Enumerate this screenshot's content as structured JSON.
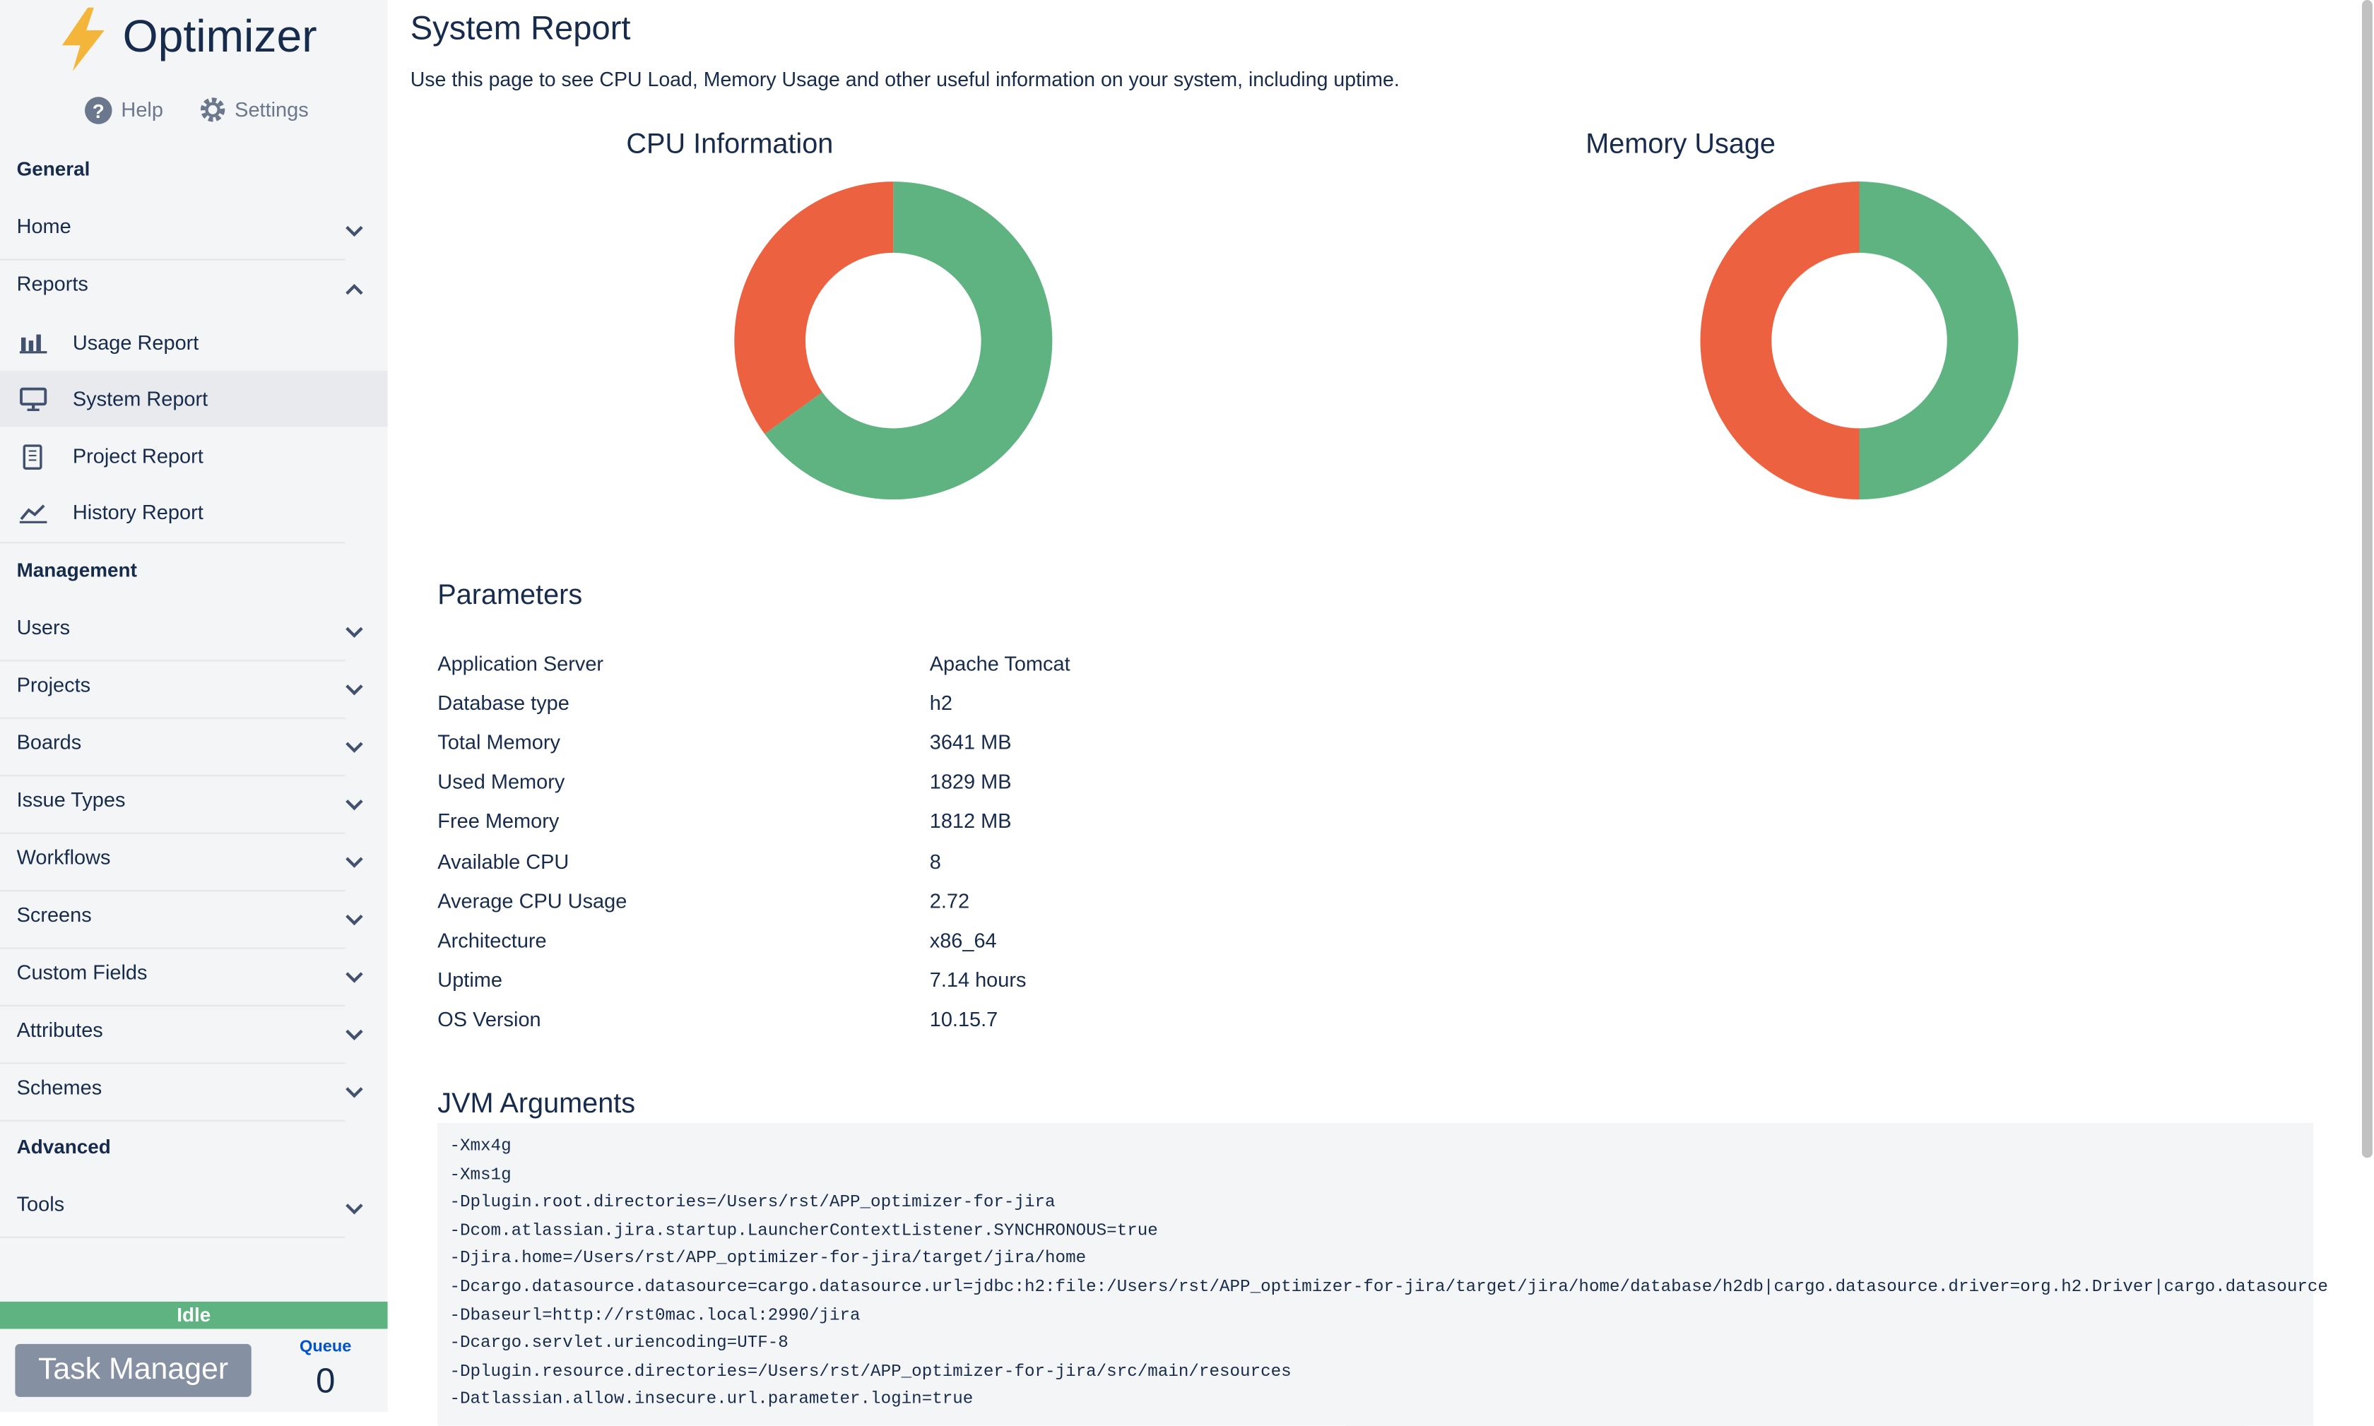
{
  "app": {
    "name": "Optimizer",
    "links": [
      "Help",
      "Settings"
    ]
  },
  "sidebar": {
    "sections": [
      {
        "title": "General",
        "items": [
          {
            "label": "Home"
          },
          {
            "label": "Reports",
            "children": [
              "Usage Report",
              "System Report",
              "Project Report",
              "History Report"
            ]
          }
        ]
      },
      {
        "title": "Management",
        "items": [
          {
            "label": "Users"
          },
          {
            "label": "Projects"
          },
          {
            "label": "Boards"
          },
          {
            "label": "Issue Types"
          },
          {
            "label": "Workflows"
          },
          {
            "label": "Screens"
          },
          {
            "label": "Custom Fields"
          },
          {
            "label": "Attributes"
          },
          {
            "label": "Schemes"
          }
        ]
      },
      {
        "title": "Advanced",
        "items": [
          {
            "label": "Tools"
          }
        ]
      }
    ]
  },
  "status": "Idle",
  "task_manager": "Task Manager",
  "queue": {
    "label": "Queue",
    "value": 0
  },
  "page": {
    "title": "System Report",
    "description": "Use this page to see CPU Load, Memory Usage and other useful information on your system, including uptime."
  },
  "charts": [
    {
      "type": "pie",
      "title": "CPU Information",
      "values": [
        65,
        35
      ],
      "colors": [
        "#5eb381",
        "#ec6240"
      ]
    },
    {
      "type": "pie",
      "title": "Memory Usage",
      "values": [
        50,
        50
      ],
      "colors": [
        "#5eb381",
        "#ec6240"
      ]
    }
  ],
  "parameters": {
    "title": "Parameters",
    "rows": [
      [
        "Application Server",
        "Apache Tomcat"
      ],
      [
        "Database type",
        "h2"
      ],
      [
        "Total Memory",
        "3641 MB"
      ],
      [
        "Used Memory",
        "1829 MB"
      ],
      [
        "Free Memory",
        "1812 MB"
      ],
      [
        "Available CPU",
        "8"
      ],
      [
        "Average CPU Usage",
        "2.72"
      ],
      [
        "Architecture",
        "x86_64"
      ],
      [
        "Uptime",
        "7.14 hours"
      ],
      [
        "OS Version",
        "10.15.7"
      ]
    ]
  },
  "jvm": {
    "title": "JVM Arguments",
    "lines": [
      "-Xmx4g",
      "-Xms1g",
      "-Dplugin.root.directories=/Users/rst/APP_optimizer-for-jira",
      "-Dcom.atlassian.jira.startup.LauncherContextListener.SYNCHRONOUS=true",
      "-Djira.home=/Users/rst/APP_optimizer-for-jira/target/jira/home",
      "-Dcargo.datasource.datasource=cargo.datasource.url=jdbc:h2:file:/Users/rst/APP_optimizer-for-jira/target/jira/home/database/h2db|cargo.datasource.driver=org.h2.Driver|cargo.datasource",
      "-Dbaseurl=http://rst0mac.local:2990/jira",
      "-Dcargo.servlet.uriencoding=UTF-8",
      "-Dplugin.resource.directories=/Users/rst/APP_optimizer-for-jira/src/main/resources",
      "-Datlassian.allow.insecure.url.parameter.login=true"
    ]
  }
}
